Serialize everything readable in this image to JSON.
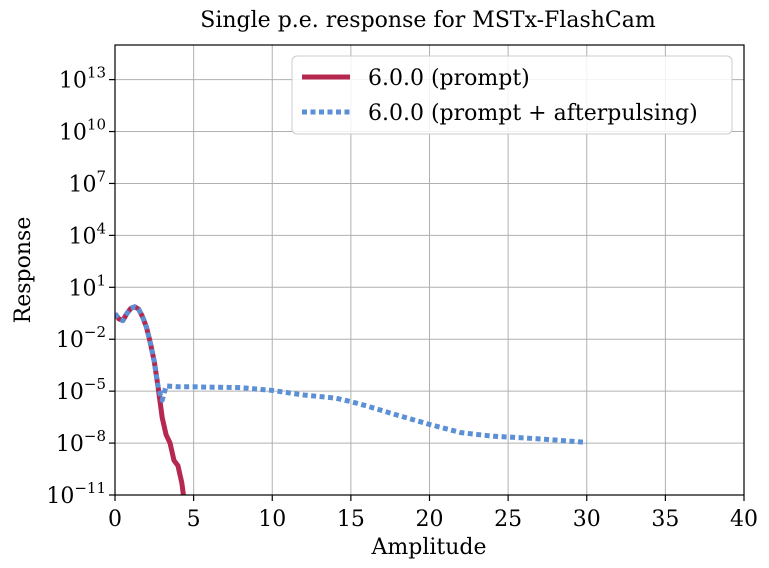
{
  "chart_data": {
    "type": "line",
    "title": "Single p.e. response for MSTx-FlashCam",
    "xlabel": "Amplitude",
    "ylabel": "Response",
    "xlim": [
      0,
      40
    ],
    "ylim": [
      1e-11,
      1000000000000000.0
    ],
    "yscale": "log",
    "grid": true,
    "legend_position": "top-right",
    "x_ticks": [
      0,
      5,
      10,
      15,
      20,
      25,
      30,
      35,
      40
    ],
    "y_tick_exponents": [
      -11,
      -8,
      -5,
      -2,
      1,
      4,
      7,
      10,
      13
    ],
    "series": [
      {
        "name": "6.0.0 (prompt)",
        "color": "#b5284f",
        "style": "solid",
        "x": [
          0,
          0.25,
          0.5,
          0.75,
          1.0,
          1.25,
          1.5,
          1.75,
          2.0,
          2.25,
          2.5,
          2.75,
          3.0,
          3.25,
          3.5,
          3.75,
          4.0,
          4.25,
          4.35
        ],
        "y": [
          0.3,
          0.15,
          0.12,
          0.3,
          0.6,
          0.75,
          0.55,
          0.2,
          0.05,
          0.006,
          0.0005,
          1.5e-05,
          3e-07,
          3e-08,
          1e-08,
          1e-09,
          5e-10,
          5e-11,
          1e-11
        ]
      },
      {
        "name": "6.0.0 (prompt + afterpulsing)",
        "color": "#5b8fd6",
        "style": "dotted",
        "x": [
          0,
          0.25,
          0.5,
          0.75,
          1.0,
          1.25,
          1.5,
          1.75,
          2.0,
          2.25,
          2.5,
          2.75,
          3.0,
          3.25,
          4,
          5,
          6,
          8,
          10,
          12,
          14,
          15,
          16,
          18,
          20,
          22,
          24,
          26,
          28,
          30
        ],
        "y": [
          0.3,
          0.15,
          0.12,
          0.3,
          0.6,
          0.75,
          0.55,
          0.2,
          0.05,
          0.006,
          0.0005,
          1.5e-05,
          3e-06,
          2e-05,
          1.8e-05,
          1.8e-05,
          1.7e-05,
          1.6e-05,
          1.1e-05,
          6e-06,
          4e-06,
          2.5e-06,
          1.4e-06,
          4e-07,
          1.2e-07,
          4e-08,
          2.5e-08,
          2e-08,
          1.5e-08,
          1.1e-08
        ]
      }
    ]
  }
}
